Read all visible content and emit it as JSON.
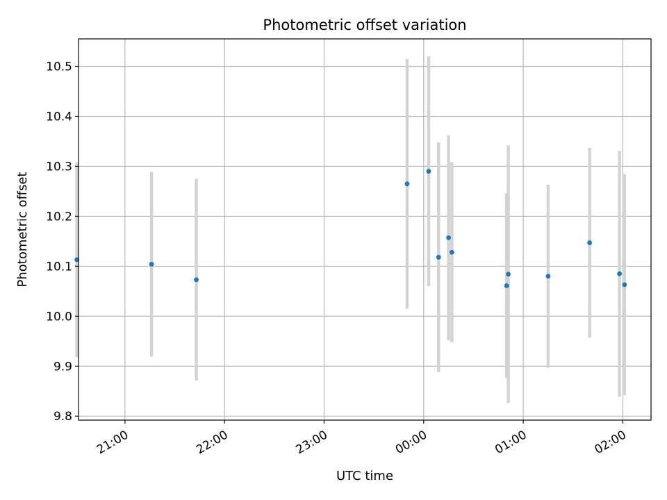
{
  "chart_data": {
    "type": "scatter",
    "title": "Photometric offset variation",
    "xlabel": "UTC time",
    "ylabel": "Photometric offset",
    "grid": true,
    "legend": "none",
    "x_reference_date": "",
    "xlim": [
      "20:32",
      "02:17"
    ],
    "ylim": [
      9.792,
      10.555
    ],
    "xticks": [
      "21:00",
      "22:00",
      "23:00",
      "00:00",
      "01:00",
      "02:00"
    ],
    "yticks": [
      9.8,
      9.9,
      10.0,
      10.1,
      10.2,
      10.3,
      10.4,
      10.5
    ],
    "ytick_labels": [
      "9.8",
      "9.9",
      "10.0",
      "10.1",
      "10.2",
      "10.3",
      "10.4",
      "10.5"
    ],
    "colors": {
      "point": "#1f77b4",
      "errorbar": "#d3d3d3",
      "grid": "#b0b0b0"
    },
    "series": [
      {
        "points": [
          {
            "x": "20:31",
            "y": 10.113,
            "err": 0.195
          },
          {
            "x": "21:16",
            "y": 10.104,
            "err": 0.185
          },
          {
            "x": "21:43",
            "y": 10.073,
            "err": 0.202
          },
          {
            "x": "23:50",
            "y": 10.265,
            "err": 0.25
          },
          {
            "x": "00:03",
            "y": 10.29,
            "err": 0.23
          },
          {
            "x": "00:09",
            "y": 10.118,
            "err": 0.23
          },
          {
            "x": "00:15",
            "y": 10.157,
            "err": 0.205
          },
          {
            "x": "00:17",
            "y": 10.128,
            "err": 0.18
          },
          {
            "x": "00:50",
            "y": 10.061,
            "err": 0.185
          },
          {
            "x": "00:51",
            "y": 10.084,
            "err": 0.258
          },
          {
            "x": "01:15",
            "y": 10.08,
            "err": 0.183
          },
          {
            "x": "01:40",
            "y": 10.147,
            "err": 0.19
          },
          {
            "x": "01:58",
            "y": 10.085,
            "err": 0.246
          },
          {
            "x": "02:01",
            "y": 10.063,
            "err": 0.221
          }
        ]
      }
    ]
  }
}
